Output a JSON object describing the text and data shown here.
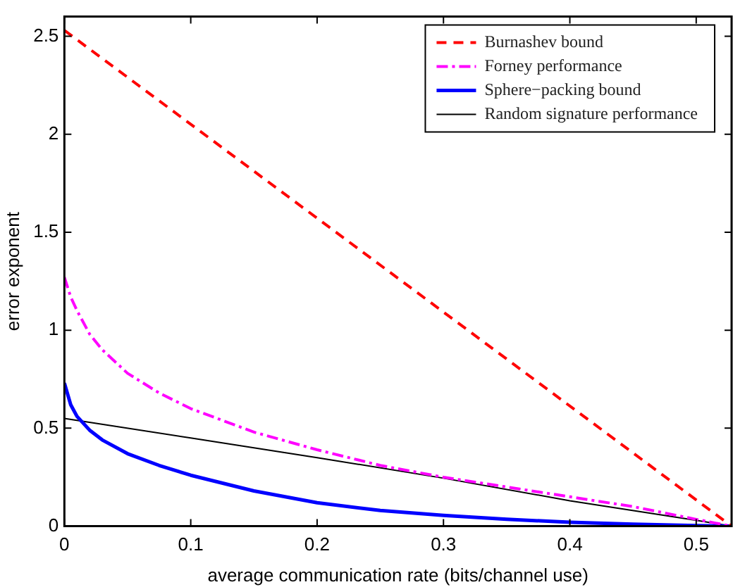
{
  "chart_data": {
    "type": "line",
    "xlabel": "average communication rate (bits/channel use)",
    "ylabel": "error exponent",
    "xlim": [
      0,
      0.528
    ],
    "xticks": [
      0,
      0.1,
      0.2,
      0.3,
      0.4,
      0.5
    ],
    "ylim": [
      0,
      2.6
    ],
    "yticks": [
      0,
      0.5,
      1,
      1.5,
      2,
      2.5
    ],
    "grid": false,
    "legend": "top right",
    "marker": "none",
    "series": [
      {
        "name": "Burnashev bound",
        "color": "#ff0000",
        "line_style": "dashed",
        "x": [
          0,
          0.528
        ],
        "values": [
          2.53,
          0
        ]
      },
      {
        "name": "Forney performance",
        "color": "#ff00ff",
        "line_style": "dashdot",
        "x": [
          0,
          0.005,
          0.01,
          0.02,
          0.03,
          0.05,
          0.075,
          0.1,
          0.15,
          0.2,
          0.25,
          0.3,
          0.35,
          0.4,
          0.45,
          0.5,
          0.528
        ],
        "values": [
          1.27,
          1.17,
          1.1,
          0.98,
          0.9,
          0.78,
          0.68,
          0.6,
          0.48,
          0.39,
          0.31,
          0.25,
          0.2,
          0.15,
          0.1,
          0.035,
          0
        ]
      },
      {
        "name": "Sphere−packing bound",
        "color": "#0000ff",
        "line_style": "solid",
        "x": [
          0,
          0.005,
          0.01,
          0.02,
          0.03,
          0.05,
          0.075,
          0.1,
          0.15,
          0.2,
          0.25,
          0.3,
          0.35,
          0.4,
          0.45,
          0.5,
          0.528
        ],
        "values": [
          0.73,
          0.62,
          0.56,
          0.49,
          0.44,
          0.37,
          0.31,
          0.26,
          0.18,
          0.12,
          0.08,
          0.055,
          0.035,
          0.02,
          0.01,
          0.003,
          0
        ]
      },
      {
        "name": "Random signature performance",
        "color": "#000000",
        "line_style": "solid",
        "x": [
          0,
          0.1,
          0.2,
          0.3,
          0.4,
          0.5,
          0.528
        ],
        "values": [
          0.55,
          0.45,
          0.35,
          0.245,
          0.13,
          0.03,
          0
        ]
      }
    ]
  }
}
